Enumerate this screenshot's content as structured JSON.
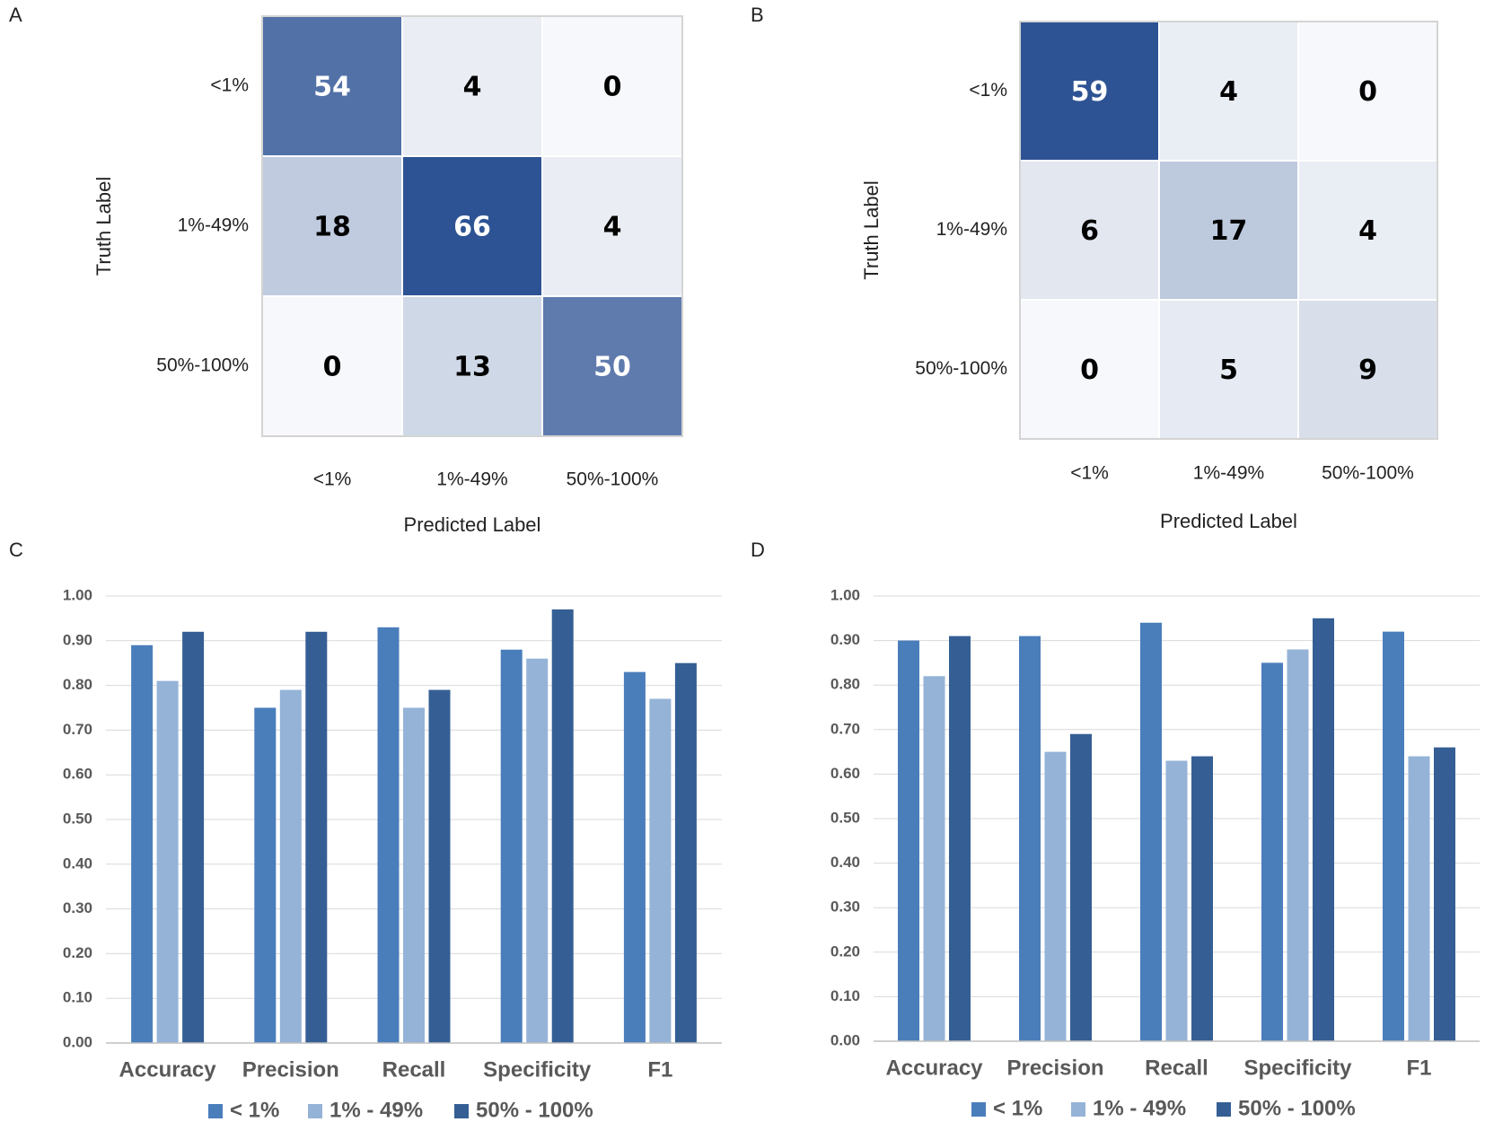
{
  "colors": {
    "cm_base": "#2e5394",
    "series": [
      "#4a7ebb",
      "#95b3d7",
      "#355f94"
    ],
    "grid": "#d9d9d9",
    "axis": "#bfbfbf",
    "text_dark": "#222222",
    "text_gray": "#595959"
  },
  "chart_data": [
    {
      "panel": "A",
      "type": "heatmap",
      "title": "",
      "xlabel": "Predicted Label",
      "ylabel": "Truth Label",
      "x_categories": [
        "<1%",
        "1%-49%",
        "50%-100%"
      ],
      "y_categories": [
        "<1%",
        "1%-49%",
        "50%-100%"
      ],
      "matrix": [
        [
          54,
          4,
          0
        ],
        [
          18,
          66,
          4
        ],
        [
          0,
          13,
          50
        ]
      ]
    },
    {
      "panel": "B",
      "type": "heatmap",
      "title": "",
      "xlabel": "Predicted Label",
      "ylabel": "Truth Label",
      "x_categories": [
        "<1%",
        "1%-49%",
        "50%-100%"
      ],
      "y_categories": [
        "<1%",
        "1%-49%",
        "50%-100%"
      ],
      "matrix": [
        [
          59,
          4,
          0
        ],
        [
          6,
          17,
          4
        ],
        [
          0,
          5,
          9
        ]
      ]
    },
    {
      "panel": "C",
      "type": "bar",
      "title": "",
      "xlabel": "",
      "ylabel": "",
      "ylim": [
        0,
        1
      ],
      "y_ticks": [
        "0.00",
        "0.10",
        "0.20",
        "0.30",
        "0.40",
        "0.50",
        "0.60",
        "0.70",
        "0.80",
        "0.90",
        "1.00"
      ],
      "grid": true,
      "legend": "bottom",
      "categories": [
        "Accuracy",
        "Precision",
        "Recall",
        "Specificity",
        "F1"
      ],
      "series": [
        {
          "name": "< 1%",
          "values": [
            0.89,
            0.75,
            0.93,
            0.88,
            0.83
          ]
        },
        {
          "name": "1% - 49%",
          "values": [
            0.81,
            0.79,
            0.75,
            0.86,
            0.77
          ]
        },
        {
          "name": "50% - 100%",
          "values": [
            0.92,
            0.92,
            0.79,
            0.97,
            0.85
          ]
        }
      ]
    },
    {
      "panel": "D",
      "type": "bar",
      "title": "",
      "xlabel": "",
      "ylabel": "",
      "ylim": [
        0,
        1
      ],
      "y_ticks": [
        "0.00",
        "0.10",
        "0.20",
        "0.30",
        "0.40",
        "0.50",
        "0.60",
        "0.70",
        "0.80",
        "0.90",
        "1.00"
      ],
      "grid": true,
      "legend": "bottom",
      "categories": [
        "Accuracy",
        "Precision",
        "Recall",
        "Specificity",
        "F1"
      ],
      "series": [
        {
          "name": "< 1%",
          "values": [
            0.9,
            0.91,
            0.94,
            0.85,
            0.92
          ]
        },
        {
          "name": "1% - 49%",
          "values": [
            0.82,
            0.65,
            0.63,
            0.88,
            0.64
          ]
        },
        {
          "name": "50% - 100%",
          "values": [
            0.91,
            0.69,
            0.64,
            0.95,
            0.66
          ]
        }
      ]
    }
  ]
}
